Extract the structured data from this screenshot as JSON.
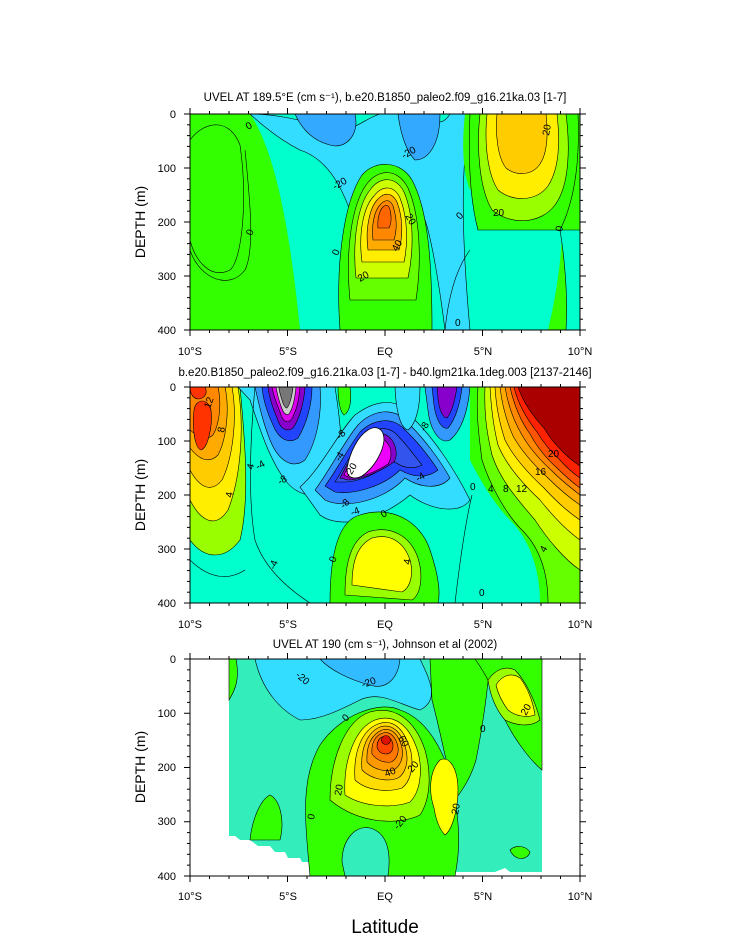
{
  "figure": {
    "xlabel": "Latitude"
  },
  "chart_data": [
    {
      "type": "heatmap",
      "title": "UVEL AT 189.5°E (cm s⁻¹), b.e20.B1850_paleo2.f09_g16.21ka.03 [1-7]",
      "ylabel": "DEPTH (m)",
      "xlim": [
        -10,
        10
      ],
      "ylim": [
        400,
        0
      ],
      "x_ticks": [
        "10°S",
        "5°S",
        "EQ",
        "5°N",
        "10°N"
      ],
      "y_ticks": [
        "0",
        "100",
        "200",
        "300",
        "400"
      ],
      "contour_labels": [
        "0",
        "-20",
        "-20",
        "20",
        "40",
        "20",
        "0",
        "0",
        "0",
        "20",
        "20",
        "0",
        "0"
      ],
      "features": [
        {
          "kind": "max",
          "lat": 0,
          "depth": 190,
          "value": 50
        },
        {
          "kind": "max",
          "lat": 6.8,
          "depth": 60,
          "value": 35
        },
        {
          "kind": "min",
          "lat": 1,
          "depth": 40,
          "value": -30
        }
      ],
      "colors": {
        "positive_weak": "#33ff00",
        "positive_mid": "#ffff00",
        "positive_strong": "#ff6600",
        "negative_weak": "#00ffee",
        "negative_mid": "#33ccff"
      }
    },
    {
      "type": "heatmap",
      "title": "b.e20.B1850_paleo2.f09_g16.21ka.03 [1-7] - b40.lgm21ka.1deg.003 [2137-2146]",
      "ylabel": "DEPTH (m)",
      "xlim": [
        -10,
        10
      ],
      "ylim": [
        400,
        0
      ],
      "x_ticks": [
        "10°S",
        "5°S",
        "EQ",
        "5°N",
        "10°N"
      ],
      "y_ticks": [
        "0",
        "100",
        "200",
        "300",
        "400"
      ],
      "contour_labels": [
        "12",
        "8",
        "4",
        "4",
        "-4",
        "-8",
        "-8",
        "-8",
        "-4",
        "-4",
        "-20",
        "-8",
        "-4",
        "0",
        "-4",
        "0",
        "4",
        "0",
        "4",
        "8",
        "12",
        "16",
        "20",
        "4",
        "0"
      ],
      "features": [
        {
          "kind": "max",
          "lat": 8,
          "depth": 80,
          "value": 22
        },
        {
          "kind": "min",
          "lat": -0.5,
          "depth": 140,
          "value": -28
        },
        {
          "kind": "min",
          "lat": -5.3,
          "depth": 20,
          "value": -24
        },
        {
          "kind": "max",
          "lat": 0,
          "depth": 300,
          "value": 5
        }
      ],
      "colors": {
        "strong_positive": "#aa0000",
        "strong_negative": "#888888",
        "negative_purple": "#8800cc"
      }
    },
    {
      "type": "heatmap",
      "title": "UVEL AT 190 (cm s⁻¹), Johnson et al (2002)",
      "ylabel": "DEPTH (m)",
      "xlim": [
        -10,
        10
      ],
      "ylim": [
        400,
        0
      ],
      "x_ticks": [
        "10°S",
        "5°S",
        "EQ",
        "5°N",
        "10°N"
      ],
      "y_ticks": [
        "0",
        "100",
        "200",
        "300",
        "400"
      ],
      "contour_labels": [
        "-20",
        "-20",
        "0",
        "0",
        "60",
        "40",
        "20",
        "20",
        "-20",
        "0",
        "20",
        "20"
      ],
      "features": [
        {
          "kind": "max",
          "lat": 0,
          "depth": 150,
          "value": 80
        },
        {
          "kind": "max",
          "lat": 6.8,
          "depth": 70,
          "value": 35
        }
      ],
      "colors": {
        "background_fill": "#33eebb"
      }
    }
  ]
}
